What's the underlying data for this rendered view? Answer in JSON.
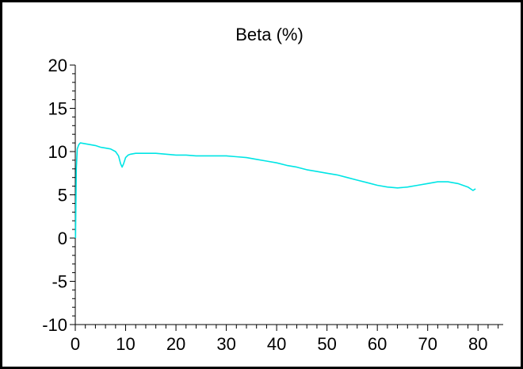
{
  "chart_data": {
    "type": "line",
    "title": "Beta (%)",
    "xlabel": "",
    "ylabel": "",
    "xlim": [
      0,
      85
    ],
    "ylim": [
      -10,
      20
    ],
    "x_ticks": [
      0,
      10,
      20,
      30,
      40,
      50,
      60,
      70,
      80
    ],
    "y_ticks": [
      20,
      15,
      10,
      5,
      0,
      -5,
      -10
    ],
    "x_tick_labels": [
      "0",
      "10",
      "20",
      "30",
      "40",
      "50",
      "60",
      "70",
      "80"
    ],
    "y_tick_labels": [
      "20",
      "15",
      "10",
      "5",
      "0",
      "-5",
      "-10"
    ],
    "grid": false,
    "line_color": "#00e5e5",
    "series": [
      {
        "x": [
          0.05,
          0.2,
          0.4,
          0.7,
          1.0,
          2,
          3,
          4,
          5,
          6,
          7,
          8,
          8.6,
          9.0,
          9.3,
          9.6,
          10.0,
          10.5,
          11,
          12,
          14,
          16,
          18,
          20,
          22,
          24,
          26,
          28,
          30,
          32,
          34,
          36,
          38,
          40,
          42,
          44,
          46,
          48,
          50,
          52,
          54,
          56,
          58,
          60,
          62,
          64,
          66,
          68,
          70,
          72,
          74,
          76,
          78,
          79,
          79.5
        ],
        "values": [
          0.0,
          8.0,
          10.3,
          10.8,
          11.0,
          10.9,
          10.8,
          10.7,
          10.5,
          10.4,
          10.3,
          10.0,
          9.5,
          8.6,
          8.2,
          8.6,
          9.3,
          9.6,
          9.7,
          9.8,
          9.8,
          9.8,
          9.7,
          9.6,
          9.6,
          9.5,
          9.5,
          9.5,
          9.5,
          9.4,
          9.3,
          9.1,
          8.9,
          8.7,
          8.4,
          8.2,
          7.9,
          7.7,
          7.5,
          7.3,
          7.0,
          6.7,
          6.4,
          6.1,
          5.9,
          5.8,
          5.9,
          6.1,
          6.3,
          6.5,
          6.5,
          6.3,
          5.9,
          5.5,
          5.7
        ]
      }
    ]
  }
}
